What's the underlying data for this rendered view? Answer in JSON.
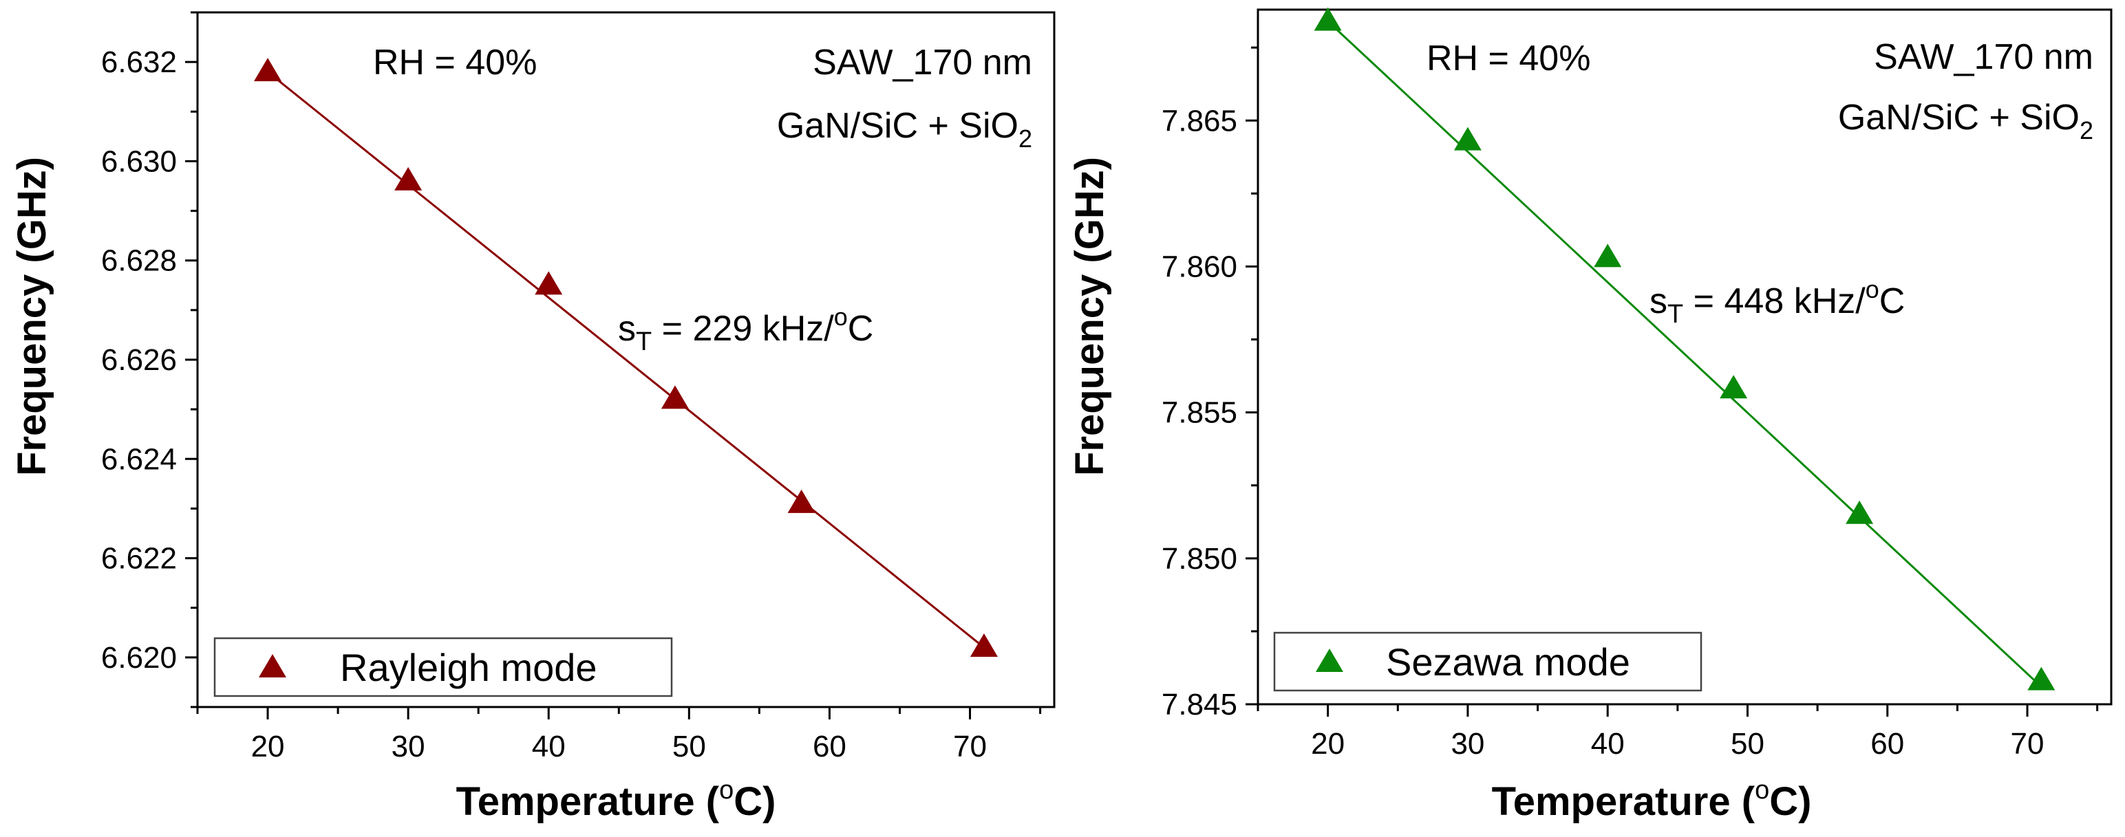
{
  "chart_data": [
    {
      "type": "scatter",
      "panel": "left",
      "xlabel": "Temperature",
      "xlabel_unit_prefix": "(",
      "xlabel_unit_sup": "o",
      "xlabel_unit_suffix": "C)",
      "ylabel": "Frequency (GHz)",
      "xlim": [
        15,
        76
      ],
      "ylim": [
        6.619,
        6.633
      ],
      "xticks": [
        20,
        30,
        40,
        50,
        60,
        70
      ],
      "yticks": [
        "6.620",
        "6.622",
        "6.624",
        "6.626",
        "6.628",
        "6.630",
        "6.632"
      ],
      "grid": false,
      "series": [
        {
          "name": "Rayleigh mode",
          "marker": "triangle",
          "color": "#8b0000",
          "fit_line": true,
          "x": [
            20,
            30,
            40,
            49,
            58,
            71
          ],
          "y": [
            6.6318,
            6.6296,
            6.6275,
            6.6252,
            6.6231,
            6.6202
          ]
        }
      ],
      "fit": {
        "x0": 20,
        "y0": 6.6318,
        "x1": 71,
        "y1": 6.6202
      },
      "legend_position": "bottom-left",
      "annotations": {
        "rh": "RH = 40%",
        "device_line1": "SAW_170 nm",
        "device_line2_main": "GaN/SiC + SiO",
        "device_line2_sub": "2",
        "slope_s": "s",
        "slope_sub": "T",
        "slope_value": " = 229 kHz/",
        "slope_sup": "o",
        "slope_unit": "C"
      }
    },
    {
      "type": "scatter",
      "panel": "right",
      "xlabel": "Temperature",
      "xlabel_unit_prefix": "(",
      "xlabel_unit_sup": "o",
      "xlabel_unit_suffix": "C)",
      "ylabel": "Frequency (GHz)",
      "xlim": [
        15,
        76
      ],
      "ylim": [
        7.845,
        7.8688
      ],
      "xticks": [
        20,
        30,
        40,
        50,
        60,
        70
      ],
      "yticks": [
        "7.845",
        "7.850",
        "7.855",
        "7.860",
        "7.865"
      ],
      "grid": false,
      "series": [
        {
          "name": "Sezawa mode",
          "marker": "triangle",
          "color": "#0a8a0a",
          "fit_line": true,
          "x": [
            20,
            30,
            40,
            49,
            58,
            71
          ],
          "y": [
            7.8684,
            7.8643,
            7.8603,
            7.8558,
            7.8515,
            7.8458
          ]
        }
      ],
      "fit": {
        "x0": 20,
        "y0": 7.8684,
        "x1": 71,
        "y1": 7.8456
      },
      "legend_position": "bottom-left",
      "annotations": {
        "rh": "RH = 40%",
        "device_line1": "SAW_170 nm",
        "device_line2_main": "GaN/SiC + SiO",
        "device_line2_sub": "2",
        "slope_s": "s",
        "slope_sub": "T",
        "slope_value": " = 448 kHz/",
        "slope_sup": "o",
        "slope_unit": "C"
      }
    }
  ]
}
